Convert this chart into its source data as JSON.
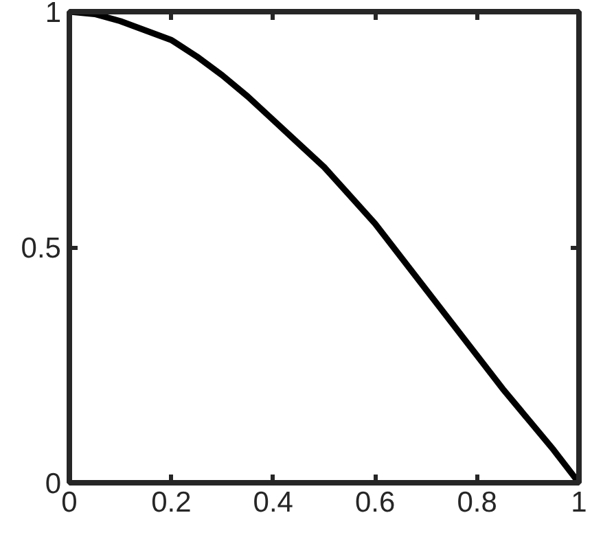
{
  "chart_data": {
    "type": "line",
    "x": [
      0,
      0.05,
      0.1,
      0.15,
      0.2,
      0.25,
      0.3,
      0.35,
      0.4,
      0.45,
      0.5,
      0.55,
      0.6,
      0.65,
      0.7,
      0.75,
      0.8,
      0.85,
      0.9,
      0.95,
      1
    ],
    "series": [
      {
        "color": "#000000",
        "values": [
          1,
          0.995,
          0.98,
          0.96,
          0.94,
          0.905,
          0.865,
          0.82,
          0.77,
          0.72,
          0.67,
          0.61,
          0.55,
          0.48,
          0.41,
          0.34,
          0.27,
          0.2,
          0.135,
          0.07,
          0
        ]
      }
    ],
    "xlim": [
      0,
      1
    ],
    "ylim": [
      0,
      1
    ],
    "xticks": [
      0,
      0.2,
      0.4,
      0.6,
      0.8,
      1
    ],
    "yticks": [
      0,
      0.5,
      1
    ],
    "grid": false,
    "line_style": "solid"
  }
}
